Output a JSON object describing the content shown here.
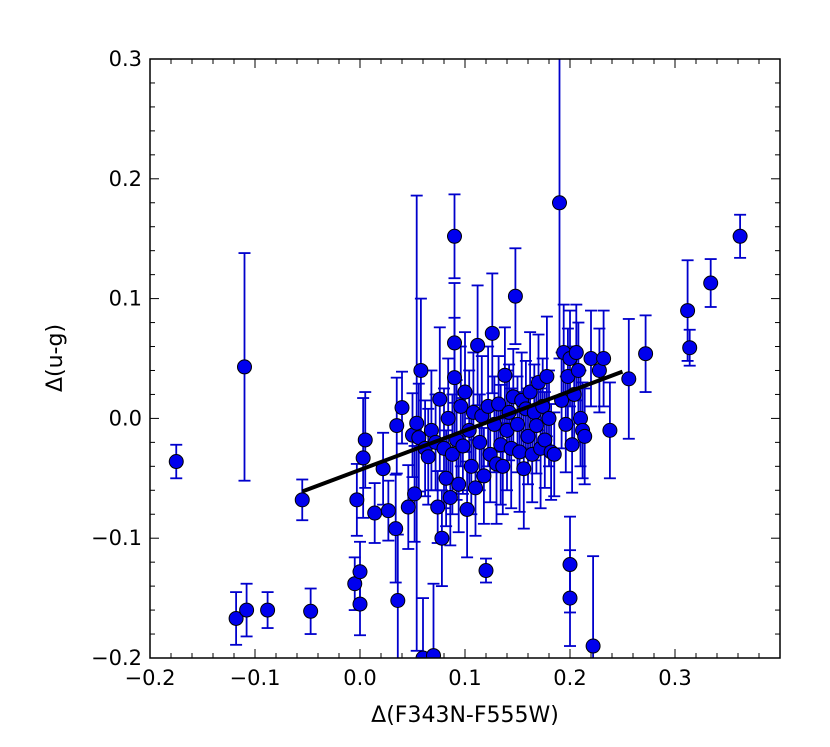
{
  "chart_data": {
    "type": "scatter",
    "xlabel": "Δ(F343N-F555W)",
    "ylabel": "Δ(u-g)",
    "xlim": [
      -0.2,
      0.4
    ],
    "ylim": [
      -0.2,
      0.3
    ],
    "xticks": [
      -0.2,
      -0.1,
      0.0,
      0.1,
      0.2,
      0.3
    ],
    "yticks": [
      -0.2,
      -0.1,
      0.0,
      0.1,
      0.2,
      0.3
    ],
    "xtick_labels": [
      "−0.2",
      "−0.1",
      "0.0",
      "0.1",
      "0.2",
      "0.3"
    ],
    "ytick_labels": [
      "−0.2",
      "−0.1",
      "0.0",
      "0.1",
      "0.2",
      "0.3"
    ],
    "grid": false,
    "marker_color": "#0000ee",
    "errorbar_color": "#0000cc",
    "fit_color": "#000000",
    "fit_line": {
      "x": [
        -0.055,
        0.25
      ],
      "y": [
        -0.061,
        0.039
      ]
    },
    "points": [
      {
        "x": -0.175,
        "y": -0.036,
        "err": 0.014
      },
      {
        "x": -0.118,
        "y": -0.167,
        "err": 0.022
      },
      {
        "x": -0.11,
        "y": 0.043,
        "err": 0.095
      },
      {
        "x": -0.108,
        "y": -0.16,
        "err": 0.022
      },
      {
        "x": -0.088,
        "y": -0.16,
        "err": 0.015
      },
      {
        "x": -0.055,
        "y": -0.068,
        "err": 0.017
      },
      {
        "x": -0.047,
        "y": -0.161,
        "err": 0.019
      },
      {
        "x": -0.005,
        "y": -0.138,
        "err": 0.022
      },
      {
        "x": -0.003,
        "y": -0.068,
        "err": 0.03
      },
      {
        "x": 0.0,
        "y": -0.155,
        "err": 0.026
      },
      {
        "x": 0.0,
        "y": -0.128,
        "err": 0.025
      },
      {
        "x": 0.003,
        "y": -0.033,
        "err": 0.05
      },
      {
        "x": 0.005,
        "y": -0.018,
        "err": 0.04
      },
      {
        "x": 0.014,
        "y": -0.079,
        "err": 0.025
      },
      {
        "x": 0.022,
        "y": -0.042,
        "err": 0.03
      },
      {
        "x": 0.027,
        "y": -0.077,
        "err": 0.025
      },
      {
        "x": 0.034,
        "y": -0.092,
        "err": 0.045
      },
      {
        "x": 0.035,
        "y": -0.006,
        "err": 0.04
      },
      {
        "x": 0.036,
        "y": -0.152,
        "err": 0.055
      },
      {
        "x": 0.04,
        "y": 0.009,
        "err": 0.03
      },
      {
        "x": 0.046,
        "y": -0.074,
        "err": 0.035
      },
      {
        "x": 0.05,
        "y": -0.014,
        "err": 0.035
      },
      {
        "x": 0.052,
        "y": -0.063,
        "err": 0.04
      },
      {
        "x": 0.054,
        "y": -0.004,
        "err": 0.19
      },
      {
        "x": 0.056,
        "y": -0.016,
        "err": 0.045
      },
      {
        "x": 0.058,
        "y": 0.04,
        "err": 0.06
      },
      {
        "x": 0.06,
        "y": -0.2,
        "err": 0.05
      },
      {
        "x": 0.062,
        "y": -0.025,
        "err": 0.04
      },
      {
        "x": 0.065,
        "y": -0.032,
        "err": 0.04
      },
      {
        "x": 0.068,
        "y": -0.01,
        "err": 0.05
      },
      {
        "x": 0.07,
        "y": -0.198,
        "err": 0.06
      },
      {
        "x": 0.072,
        "y": -0.02,
        "err": 0.04
      },
      {
        "x": 0.074,
        "y": -0.074,
        "err": 0.03
      },
      {
        "x": 0.076,
        "y": 0.016,
        "err": 0.06
      },
      {
        "x": 0.078,
        "y": -0.1,
        "err": 0.04
      },
      {
        "x": 0.08,
        "y": -0.025,
        "err": 0.05
      },
      {
        "x": 0.082,
        "y": -0.05,
        "err": 0.04
      },
      {
        "x": 0.084,
        "y": 0.0,
        "err": 0.05
      },
      {
        "x": 0.086,
        "y": -0.066,
        "err": 0.04
      },
      {
        "x": 0.088,
        "y": -0.03,
        "err": 0.05
      },
      {
        "x": 0.09,
        "y": 0.152,
        "err": 0.035
      },
      {
        "x": 0.09,
        "y": 0.063,
        "err": 0.05
      },
      {
        "x": 0.09,
        "y": 0.034,
        "err": 0.05
      },
      {
        "x": 0.092,
        "y": -0.018,
        "err": 0.05
      },
      {
        "x": 0.094,
        "y": -0.055,
        "err": 0.04
      },
      {
        "x": 0.096,
        "y": 0.01,
        "err": 0.05
      },
      {
        "x": 0.098,
        "y": -0.023,
        "err": 0.04
      },
      {
        "x": 0.1,
        "y": 0.022,
        "err": 0.05
      },
      {
        "x": 0.102,
        "y": -0.076,
        "err": 0.04
      },
      {
        "x": 0.104,
        "y": -0.01,
        "err": 0.05
      },
      {
        "x": 0.106,
        "y": -0.04,
        "err": 0.04
      },
      {
        "x": 0.108,
        "y": 0.005,
        "err": 0.05
      },
      {
        "x": 0.11,
        "y": -0.058,
        "err": 0.04
      },
      {
        "x": 0.112,
        "y": 0.061,
        "err": 0.05
      },
      {
        "x": 0.114,
        "y": -0.02,
        "err": 0.04
      },
      {
        "x": 0.116,
        "y": 0.002,
        "err": 0.05
      },
      {
        "x": 0.118,
        "y": -0.048,
        "err": 0.04
      },
      {
        "x": 0.12,
        "y": -0.127,
        "err": 0.01
      },
      {
        "x": 0.122,
        "y": 0.01,
        "err": 0.05
      },
      {
        "x": 0.124,
        "y": -0.03,
        "err": 0.04
      },
      {
        "x": 0.126,
        "y": 0.071,
        "err": 0.05
      },
      {
        "x": 0.128,
        "y": -0.005,
        "err": 0.04
      },
      {
        "x": 0.13,
        "y": -0.038,
        "err": 0.05
      },
      {
        "x": 0.132,
        "y": 0.012,
        "err": 0.04
      },
      {
        "x": 0.134,
        "y": -0.022,
        "err": 0.05
      },
      {
        "x": 0.136,
        "y": -0.04,
        "err": 0.04
      },
      {
        "x": 0.138,
        "y": 0.036,
        "err": 0.04
      },
      {
        "x": 0.14,
        "y": -0.01,
        "err": 0.05
      },
      {
        "x": 0.142,
        "y": 0.005,
        "err": 0.04
      },
      {
        "x": 0.144,
        "y": -0.025,
        "err": 0.05
      },
      {
        "x": 0.146,
        "y": 0.018,
        "err": 0.04
      },
      {
        "x": 0.148,
        "y": 0.102,
        "err": 0.04
      },
      {
        "x": 0.15,
        "y": -0.005,
        "err": 0.04
      },
      {
        "x": 0.152,
        "y": -0.028,
        "err": 0.05
      },
      {
        "x": 0.154,
        "y": 0.015,
        "err": 0.04
      },
      {
        "x": 0.156,
        "y": -0.042,
        "err": 0.05
      },
      {
        "x": 0.158,
        "y": 0.008,
        "err": 0.04
      },
      {
        "x": 0.16,
        "y": -0.015,
        "err": 0.04
      },
      {
        "x": 0.162,
        "y": 0.022,
        "err": 0.05
      },
      {
        "x": 0.164,
        "y": -0.03,
        "err": 0.04
      },
      {
        "x": 0.166,
        "y": 0.005,
        "err": 0.04
      },
      {
        "x": 0.168,
        "y": -0.006,
        "err": 0.04
      },
      {
        "x": 0.17,
        "y": 0.03,
        "err": 0.04
      },
      {
        "x": 0.172,
        "y": -0.025,
        "err": 0.05
      },
      {
        "x": 0.174,
        "y": 0.01,
        "err": 0.04
      },
      {
        "x": 0.176,
        "y": -0.018,
        "err": 0.04
      },
      {
        "x": 0.178,
        "y": 0.035,
        "err": 0.05
      },
      {
        "x": 0.18,
        "y": 0.0,
        "err": 0.04
      },
      {
        "x": 0.182,
        "y": -0.028,
        "err": 0.04
      },
      {
        "x": 0.185,
        "y": -0.03,
        "err": 0.035
      },
      {
        "x": 0.19,
        "y": 0.18,
        "err": 0.13
      },
      {
        "x": 0.192,
        "y": 0.015,
        "err": 0.04
      },
      {
        "x": 0.194,
        "y": 0.055,
        "err": 0.04
      },
      {
        "x": 0.196,
        "y": -0.005,
        "err": 0.04
      },
      {
        "x": 0.198,
        "y": 0.035,
        "err": 0.04
      },
      {
        "x": 0.2,
        "y": -0.122,
        "err": 0.04
      },
      {
        "x": 0.2,
        "y": -0.15,
        "err": 0.04
      },
      {
        "x": 0.2,
        "y": 0.05,
        "err": 0.04
      },
      {
        "x": 0.202,
        "y": -0.022,
        "err": 0.04
      },
      {
        "x": 0.204,
        "y": 0.02,
        "err": 0.04
      },
      {
        "x": 0.206,
        "y": 0.055,
        "err": 0.04
      },
      {
        "x": 0.208,
        "y": 0.04,
        "err": 0.04
      },
      {
        "x": 0.21,
        "y": 0.0,
        "err": 0.04
      },
      {
        "x": 0.212,
        "y": -0.01,
        "err": 0.04
      },
      {
        "x": 0.214,
        "y": -0.015,
        "err": 0.04
      },
      {
        "x": 0.22,
        "y": 0.05,
        "err": 0.04
      },
      {
        "x": 0.222,
        "y": -0.19,
        "err": 0.075
      },
      {
        "x": 0.228,
        "y": 0.04,
        "err": 0.035
      },
      {
        "x": 0.232,
        "y": 0.05,
        "err": 0.04
      },
      {
        "x": 0.238,
        "y": -0.01,
        "err": 0.04
      },
      {
        "x": 0.256,
        "y": 0.033,
        "err": 0.05
      },
      {
        "x": 0.272,
        "y": 0.054,
        "err": 0.032
      },
      {
        "x": 0.312,
        "y": 0.09,
        "err": 0.042
      },
      {
        "x": 0.314,
        "y": 0.059,
        "err": 0.015
      },
      {
        "x": 0.334,
        "y": 0.113,
        "err": 0.02
      },
      {
        "x": 0.362,
        "y": 0.152,
        "err": 0.018
      }
    ]
  }
}
